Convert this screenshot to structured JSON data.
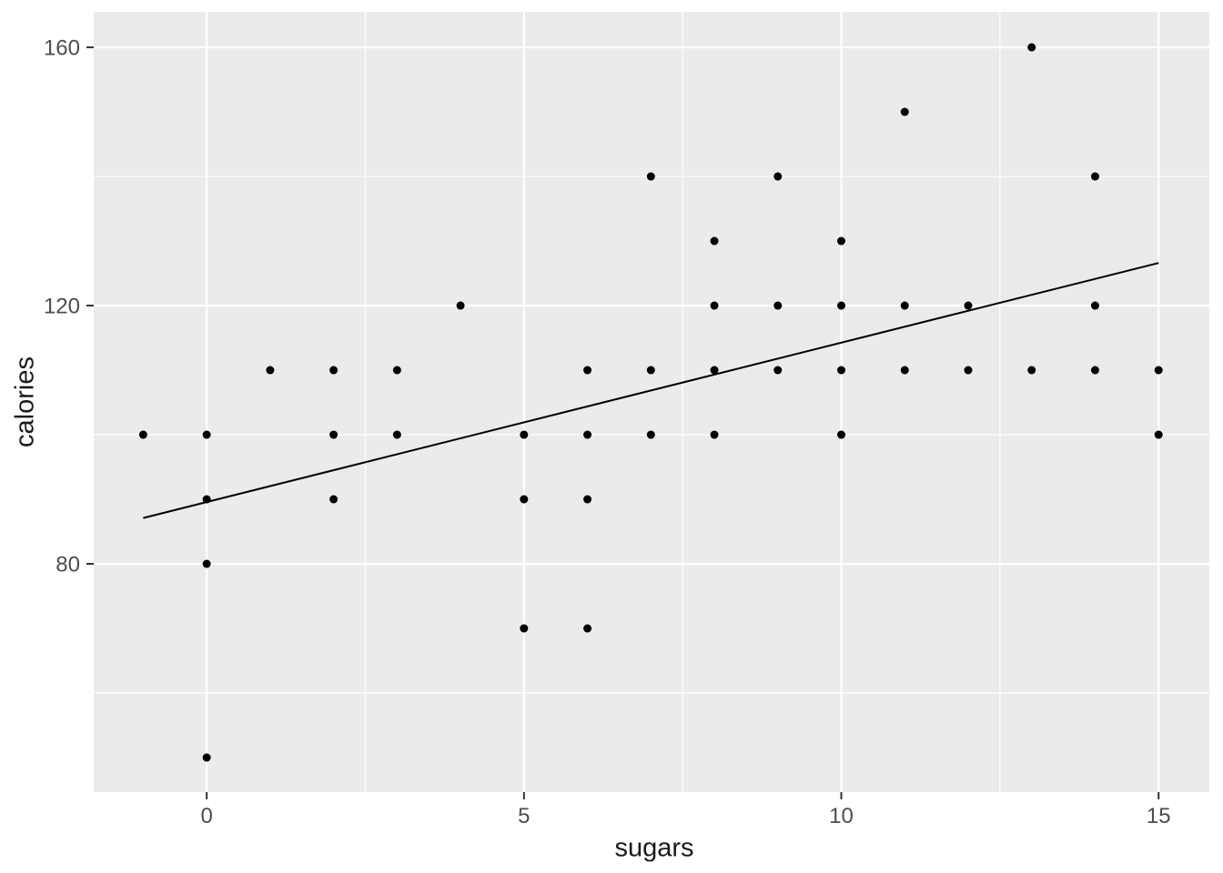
{
  "chart_data": {
    "type": "scatter",
    "title": "",
    "xlabel": "sugars",
    "ylabel": "calories",
    "x_ticks": [
      0,
      5,
      10,
      15
    ],
    "x_tick_labels": [
      "0",
      "5",
      "10",
      "15"
    ],
    "x_minor_ticks": [
      2.5,
      7.5,
      12.5
    ],
    "y_ticks": [
      80,
      120,
      160
    ],
    "y_tick_labels": [
      "80",
      "120",
      "160"
    ],
    "y_minor_ticks": [
      60,
      100,
      140
    ],
    "xlim": [
      -1.78,
      15.8
    ],
    "ylim": [
      44.65,
      165.5
    ],
    "grid": "major and minor white gridlines on gray panel",
    "legend_position": "none",
    "points": [
      [
        -1,
        100
      ],
      [
        0,
        50
      ],
      [
        0,
        80
      ],
      [
        0,
        90
      ],
      [
        0,
        100
      ],
      [
        1,
        110
      ],
      [
        2,
        90
      ],
      [
        2,
        100
      ],
      [
        2,
        110
      ],
      [
        3,
        100
      ],
      [
        3,
        110
      ],
      [
        4,
        120
      ],
      [
        5,
        70
      ],
      [
        5,
        90
      ],
      [
        5,
        100
      ],
      [
        6,
        70
      ],
      [
        6,
        90
      ],
      [
        6,
        100
      ],
      [
        6,
        110
      ],
      [
        7,
        100
      ],
      [
        7,
        110
      ],
      [
        7,
        140
      ],
      [
        8,
        100
      ],
      [
        8,
        110
      ],
      [
        8,
        120
      ],
      [
        8,
        130
      ],
      [
        9,
        110
      ],
      [
        9,
        120
      ],
      [
        9,
        140
      ],
      [
        10,
        100
      ],
      [
        10,
        110
      ],
      [
        10,
        120
      ],
      [
        10,
        130
      ],
      [
        11,
        110
      ],
      [
        11,
        120
      ],
      [
        11,
        150
      ],
      [
        12,
        110
      ],
      [
        12,
        120
      ],
      [
        13,
        110
      ],
      [
        13,
        160
      ],
      [
        14,
        110
      ],
      [
        14,
        120
      ],
      [
        14,
        140
      ],
      [
        15,
        100
      ],
      [
        15,
        110
      ]
    ],
    "trend_line": {
      "type": "linear",
      "x1": -1,
      "y1": 87.1,
      "x2": 15,
      "y2": 126.6
    },
    "colors": {
      "figure_background": "#ffffff",
      "panel_background": "#ebebeb",
      "gridline": "#ffffff",
      "point": "#000000",
      "trend_line": "#000000",
      "tick_label": "#4d4d4d",
      "axis_title": "#1a1a1a",
      "tick_mark": "#333333"
    }
  }
}
